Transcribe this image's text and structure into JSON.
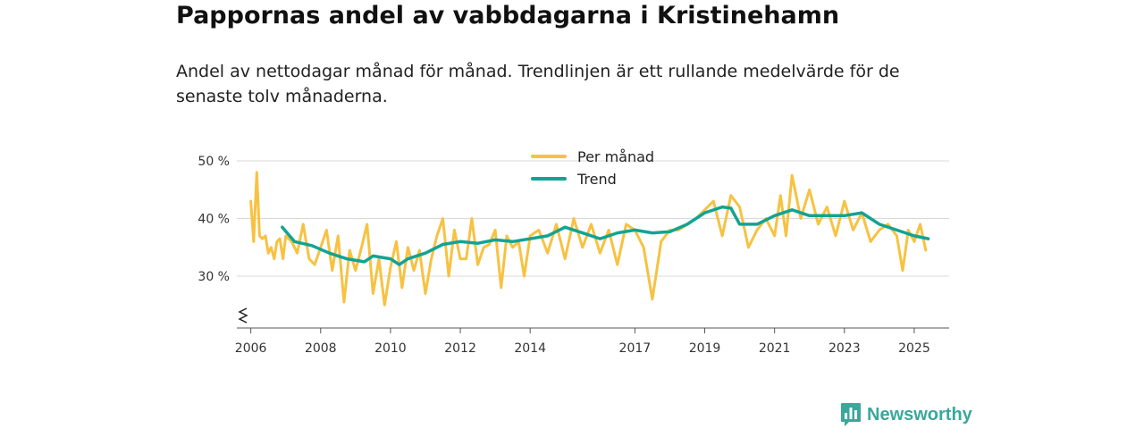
{
  "title": "Pappornas andel av vabbdagarna i Kristinehamn",
  "subtitle": "Andel av nettodagar månad för månad. Trendlinjen är ett rullande medelvärde för de senaste tolv månaderna.",
  "brand": {
    "name": "Newsworthy",
    "icon": "bar-chart-bubble-icon",
    "color": "#3aa79b"
  },
  "colors": {
    "per_manad": "#f7c242",
    "trend": "#13a392",
    "grid": "#d9d9d9",
    "axis": "#555555"
  },
  "chart_data": {
    "type": "line",
    "title": "Pappornas andel av vabbdagarna i Kristinehamn",
    "xlabel": "",
    "ylabel": "",
    "ylim": [
      21,
      50
    ],
    "y_ticks": [
      30,
      40,
      50
    ],
    "y_tick_labels": [
      "30 %",
      "40 %",
      "50 %"
    ],
    "x_ticks": [
      2006,
      2008,
      2010,
      2012,
      2014,
      2017,
      2019,
      2021,
      2023,
      2025
    ],
    "x_tick_labels": [
      "2006",
      "2008",
      "2010",
      "2012",
      "2014",
      "2017",
      "2019",
      "2021",
      "2023",
      "2025"
    ],
    "xlim": [
      2005.6,
      2026.0
    ],
    "axis_break": true,
    "grid": true,
    "legend_position": "top-center",
    "series": [
      {
        "name": "Per månad",
        "x": [
          2006.0,
          2006.08,
          2006.17,
          2006.25,
          2006.33,
          2006.42,
          2006.5,
          2006.58,
          2006.67,
          2006.75,
          2006.83,
          2006.92,
          2007.0,
          2007.17,
          2007.33,
          2007.5,
          2007.67,
          2007.83,
          2008.0,
          2008.17,
          2008.33,
          2008.5,
          2008.67,
          2008.83,
          2009.0,
          2009.17,
          2009.33,
          2009.5,
          2009.67,
          2009.83,
          2010.0,
          2010.17,
          2010.33,
          2010.5,
          2010.67,
          2010.83,
          2011.0,
          2011.17,
          2011.33,
          2011.5,
          2011.67,
          2011.83,
          2012.0,
          2012.17,
          2012.33,
          2012.5,
          2012.67,
          2012.83,
          2013.0,
          2013.17,
          2013.33,
          2013.5,
          2013.67,
          2013.83,
          2014.0,
          2014.25,
          2014.5,
          2014.75,
          2015.0,
          2015.25,
          2015.5,
          2015.75,
          2016.0,
          2016.25,
          2016.5,
          2016.75,
          2017.0,
          2017.25,
          2017.5,
          2017.75,
          2018.0,
          2018.25,
          2018.5,
          2018.75,
          2019.0,
          2019.25,
          2019.5,
          2019.75,
          2020.0,
          2020.25,
          2020.5,
          2020.75,
          2021.0,
          2021.17,
          2021.33,
          2021.5,
          2021.75,
          2022.0,
          2022.25,
          2022.5,
          2022.75,
          2023.0,
          2023.25,
          2023.5,
          2023.75,
          2024.0,
          2024.25,
          2024.5,
          2024.67,
          2024.83,
          2025.0,
          2025.17,
          2025.33
        ],
        "values": [
          43,
          36,
          48,
          37,
          36.5,
          37,
          34,
          35,
          33,
          36,
          36.5,
          33,
          37,
          36,
          34,
          39,
          33,
          32,
          35,
          38,
          31,
          37,
          25.5,
          34.5,
          31,
          35,
          39,
          27,
          33,
          25,
          31.5,
          36,
          28,
          35,
          31,
          34.5,
          27,
          33,
          37,
          40,
          30,
          38,
          33,
          33,
          40,
          32,
          35,
          35.5,
          38,
          28,
          37,
          35,
          36,
          30,
          37,
          38,
          34,
          39,
          33,
          40,
          35,
          39,
          34,
          38,
          32,
          39,
          38,
          35,
          26,
          36,
          38,
          38,
          39,
          40,
          41.5,
          43,
          37,
          44,
          42,
          35,
          38,
          40,
          37,
          44,
          37,
          47.5,
          40,
          45,
          39,
          42,
          37,
          43,
          38,
          41,
          36,
          38,
          39,
          37,
          31,
          38,
          36,
          39,
          34.5
        ]
      },
      {
        "name": "Trend",
        "x": [
          2006.9,
          2007.25,
          2007.75,
          2008.25,
          2008.75,
          2009.25,
          2009.5,
          2010.0,
          2010.25,
          2010.5,
          2011.0,
          2011.5,
          2012.0,
          2012.5,
          2013.0,
          2013.5,
          2014.0,
          2014.5,
          2015.0,
          2015.5,
          2016.0,
          2016.5,
          2017.0,
          2017.5,
          2018.0,
          2018.5,
          2019.0,
          2019.5,
          2019.75,
          2020.0,
          2020.5,
          2021.0,
          2021.5,
          2022.0,
          2022.5,
          2023.0,
          2023.5,
          2024.0,
          2024.5,
          2025.0,
          2025.4
        ],
        "values": [
          38.5,
          36,
          35.3,
          34,
          33,
          32.5,
          33.5,
          33,
          32,
          33,
          34,
          35.5,
          36,
          35.7,
          36.3,
          36,
          36.5,
          37,
          38.5,
          37.5,
          36.5,
          37.5,
          38,
          37.5,
          37.7,
          39,
          41,
          42,
          41.8,
          39,
          39,
          40.5,
          41.5,
          40.5,
          40.5,
          40.5,
          41,
          39,
          38,
          37,
          36.5
        ]
      }
    ]
  }
}
